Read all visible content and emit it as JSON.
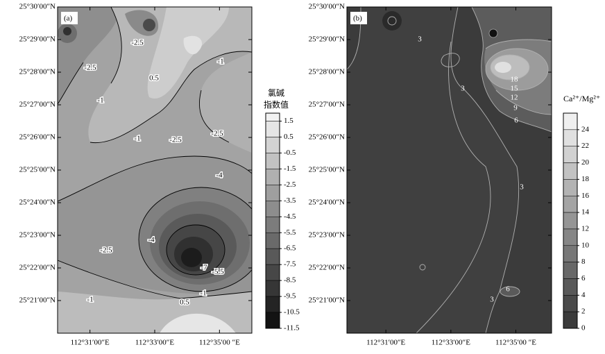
{
  "chart_data": [
    {
      "type": "contour",
      "panel_label": "(a)",
      "xlim": [
        30,
        36
      ],
      "ylim": [
        20,
        30
      ],
      "xticks": [
        {
          "value": 31,
          "label": "112°31′00″E"
        },
        {
          "value": 33,
          "label": "112°33′00″E"
        },
        {
          "value": 35,
          "label": "112°35′00 ″E"
        }
      ],
      "yticks": [
        {
          "value": 30,
          "label": "25°30′00″N"
        },
        {
          "value": 29,
          "label": "25°29′00″N"
        },
        {
          "value": 28,
          "label": "25°28′00″N"
        },
        {
          "value": 27,
          "label": "25°27′00″N"
        },
        {
          "value": 26,
          "label": "25°26′00″N"
        },
        {
          "value": 25,
          "label": "25°25′00″N"
        },
        {
          "value": 24,
          "label": "25°24′00″N"
        },
        {
          "value": 23,
          "label": "25°23′00″N"
        },
        {
          "value": 22,
          "label": "25°22′00″N"
        },
        {
          "value": 21,
          "label": "25°21′00″N"
        }
      ],
      "colorbar": {
        "title": [
          "氯碱",
          "指数值"
        ],
        "lim": [
          -11.5,
          2
        ],
        "ticks": [
          1.5,
          0.5,
          -0.5,
          -1.5,
          -2.5,
          -3.5,
          -4.5,
          -5.5,
          -6.5,
          -7.5,
          -8.5,
          -9.5,
          -10.5,
          -11.5
        ]
      },
      "colormap": [
        "#0a0a0a",
        "#f6f6f6"
      ],
      "contour_labels": [
        -2.5,
        -2.5,
        -1,
        0.5,
        -1,
        -1,
        -2.5,
        -2.5,
        -4,
        -4,
        -2.5,
        -7,
        -5.5,
        -1,
        0.5,
        -1
      ]
    },
    {
      "type": "contour",
      "panel_label": "(b)",
      "xlim": [
        29.8,
        36.1
      ],
      "ylim": [
        20,
        30
      ],
      "xticks": [
        {
          "value": 31,
          "label": "112°31′00″E"
        },
        {
          "value": 33,
          "label": "112°33′00″E"
        },
        {
          "value": 35,
          "label": "112°35′00 ″E"
        }
      ],
      "yticks": [
        {
          "value": 30,
          "label": "25°30′00″N"
        },
        {
          "value": 29,
          "label": "25°29′00″N"
        },
        {
          "value": 28,
          "label": "25°28′00″N"
        },
        {
          "value": 27,
          "label": "25°27′00″N"
        },
        {
          "value": 26,
          "label": "25°26′00″N"
        },
        {
          "value": 25,
          "label": "25°25′00″N"
        },
        {
          "value": 24,
          "label": "25°24′00″N"
        },
        {
          "value": 23,
          "label": "25°23′00″N"
        },
        {
          "value": 22,
          "label": "25°22′00″N"
        },
        {
          "value": 21,
          "label": "25°21′00″N"
        }
      ],
      "colorbar": {
        "title": [
          "Ca²⁺/Mg²⁺"
        ],
        "lim": [
          0,
          26
        ],
        "ticks": [
          24,
          22,
          20,
          18,
          16,
          14,
          12,
          10,
          8,
          6,
          4,
          2,
          0
        ]
      },
      "colormap": [
        "#333333",
        "#f6f6f6"
      ],
      "contour_labels": [
        3,
        3,
        18,
        15,
        12,
        9,
        6,
        3,
        6,
        3
      ]
    }
  ]
}
